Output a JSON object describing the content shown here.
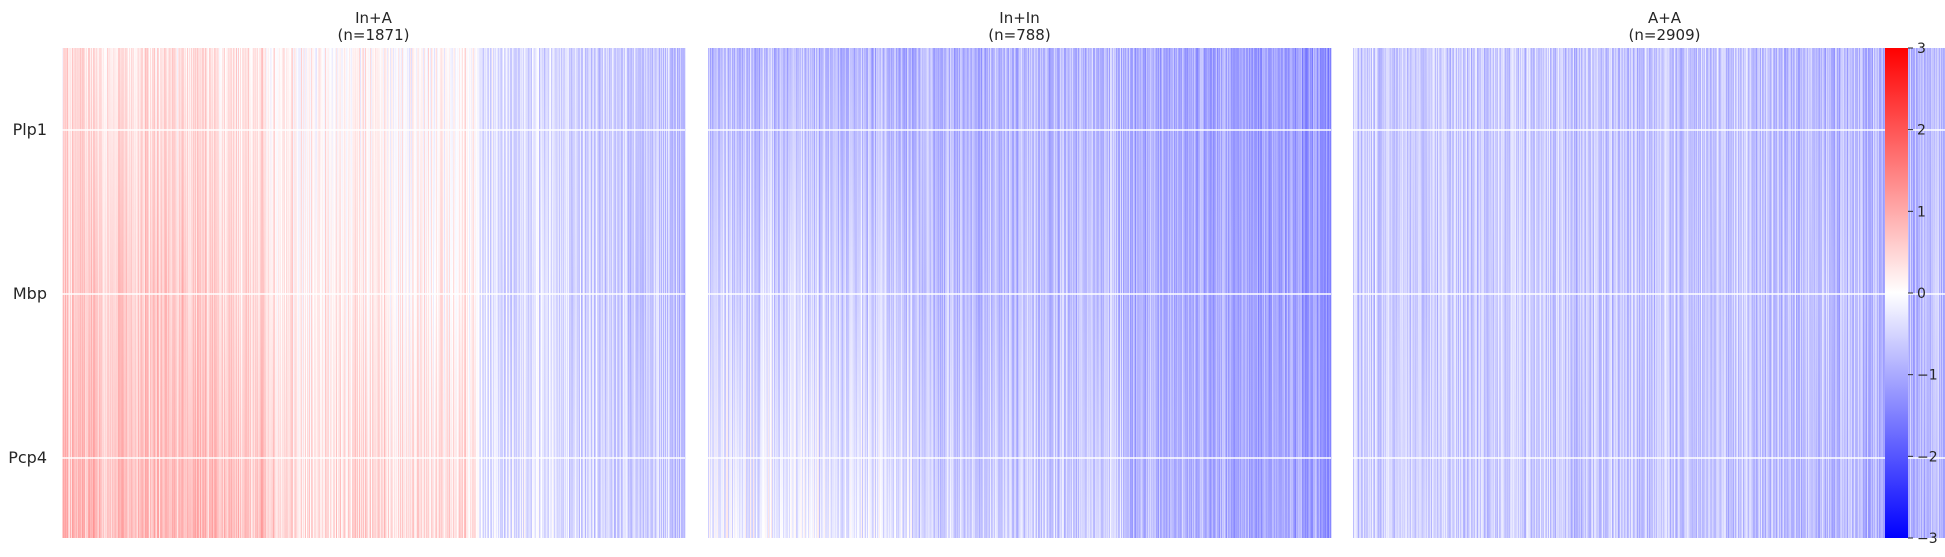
{
  "chart_data": {
    "type": "heatmap",
    "panels": [
      {
        "title": "In+A",
        "subtitle": "(n=1871)",
        "n": 1871,
        "profile": [
          0.55,
          0.35,
          0.05,
          -0.75
        ],
        "top_bias": [
          0.15,
          0.0,
          -0.55
        ],
        "mid_bias": [
          0.5,
          0.15,
          -0.5
        ],
        "bot_bias": [
          0.9,
          0.55,
          -0.4
        ]
      },
      {
        "title": "In+In",
        "subtitle": "(n=788)",
        "n": 788,
        "profile": [
          -0.4,
          -0.7,
          -0.55,
          -1.1
        ],
        "top_bias": [
          -0.9,
          -0.9,
          -1.1
        ],
        "mid_bias": [
          -0.4,
          -0.7,
          -1.0
        ],
        "bot_bias": [
          0.15,
          -0.4,
          -0.9
        ]
      },
      {
        "title": "A+A",
        "subtitle": "(n=2909)",
        "n": 2909,
        "profile": [
          -0.5,
          -0.6,
          -0.55,
          -0.85
        ],
        "top_bias": [
          -0.55,
          -0.6,
          -0.8
        ],
        "mid_bias": [
          -0.5,
          -0.55,
          -0.7
        ],
        "bot_bias": [
          -0.45,
          -0.55,
          -0.8
        ]
      }
    ],
    "rows": [
      "Plp1",
      "Mbp",
      "Pcp4"
    ],
    "colorbar": {
      "ticks": [
        "3",
        "2",
        "1",
        "0",
        "−1",
        "−2",
        "−3"
      ],
      "range": [
        -3,
        3
      ],
      "colormap": "bwr",
      "low_color": "#0000ff",
      "mid_color": "#ffffff",
      "high_color": "#ff0000"
    },
    "grid": true
  }
}
